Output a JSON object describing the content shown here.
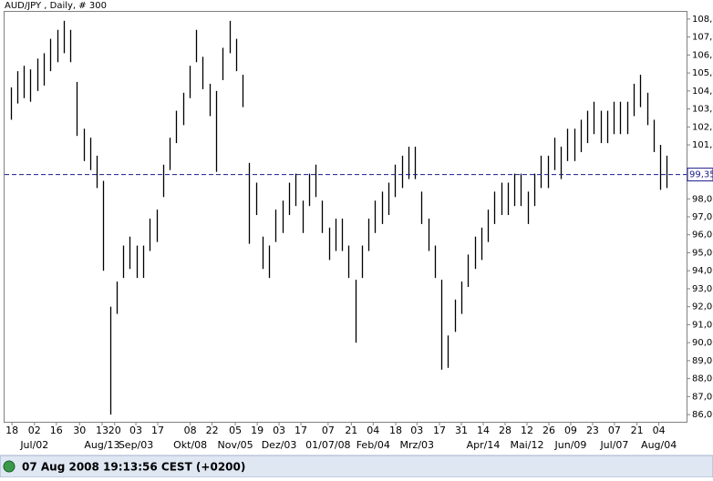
{
  "chart_data": {
    "type": "range-bar",
    "title": "AUD/JPY , Daily, # 300",
    "color": "#000000",
    "xlim": [
      0,
      100
    ],
    "high": [
      104.2,
      105.1,
      105.4,
      105.2,
      105.8,
      106.1,
      106.9,
      107.4,
      107.9,
      107.4,
      104.5,
      101.9,
      101.4,
      100.4,
      99,
      92,
      93.4,
      95.4,
      95.9,
      95.4,
      95.4,
      96.9,
      97.4,
      99.9,
      101.4,
      102.9,
      103.9,
      105.4,
      107.4,
      105.9,
      104.4,
      104,
      106.4,
      107.9,
      106.9,
      104.9,
      100,
      98.9,
      95.9,
      95.4,
      97.4,
      97.9,
      98.9,
      99.4,
      97.9,
      99.4,
      99.9,
      97.9,
      96.4,
      96.9,
      96.9,
      95.4,
      93.5,
      95.4,
      96.9,
      97.9,
      98.4,
      98.9,
      99.9,
      100.4,
      100.9,
      100.9,
      98.4,
      96.9,
      95.4,
      93.5,
      90.4,
      92.4,
      93.4,
      94.9,
      95.9,
      96.4,
      97.4,
      98.4,
      98.9,
      98.9,
      99.4,
      99.4,
      98.4,
      99.4,
      100.4,
      100.4,
      101.4,
      100.9,
      101.9,
      101.9,
      102.4,
      102.9,
      103.4,
      102.9,
      102.9,
      103.4,
      103.4,
      103.4,
      104.4,
      104.9,
      103.9,
      102.4,
      101,
      100.4
    ],
    "low": [
      102.4,
      103.3,
      103.6,
      103.4,
      104,
      104.3,
      105.1,
      105.6,
      106.1,
      105.6,
      101.5,
      100.1,
      99.6,
      98.6,
      94,
      86,
      91.6,
      93.6,
      94.1,
      93.6,
      93.6,
      95.1,
      95.6,
      98.1,
      99.6,
      101.1,
      102.1,
      103.6,
      105.6,
      104.1,
      102.6,
      99.5,
      104.6,
      106.1,
      105.1,
      103.1,
      95.5,
      97.1,
      94.1,
      93.6,
      95.6,
      96.1,
      97.1,
      97.6,
      96.1,
      97.6,
      98.1,
      96.1,
      94.6,
      95.1,
      95.1,
      93.6,
      90,
      93.6,
      95.1,
      96.1,
      96.6,
      97.1,
      98.1,
      98.6,
      99.1,
      99.1,
      96.6,
      95.1,
      93.6,
      88.5,
      88.6,
      90.6,
      91.6,
      93.1,
      94.1,
      94.6,
      95.6,
      96.6,
      97.1,
      97.1,
      97.6,
      97.6,
      96.6,
      97.6,
      98.6,
      98.6,
      99.6,
      99.1,
      100.1,
      100.1,
      100.6,
      101.1,
      101.6,
      101.1,
      101.1,
      101.6,
      101.6,
      101.6,
      102.6,
      103.1,
      102.1,
      100.6,
      98.5,
      98.6
    ],
    "ylim": [
      85.6,
      108.4
    ],
    "yticks": [
      {
        "value": 86,
        "label": "86,00"
      },
      {
        "value": 87,
        "label": "87,00"
      },
      {
        "value": 88,
        "label": "88,00"
      },
      {
        "value": 89,
        "label": "89,00"
      },
      {
        "value": 90,
        "label": "90,00"
      },
      {
        "value": 91,
        "label": "91,00"
      },
      {
        "value": 92,
        "label": "92,00"
      },
      {
        "value": 93,
        "label": "93,00"
      },
      {
        "value": 94,
        "label": "94,00"
      },
      {
        "value": 95,
        "label": "95,00"
      },
      {
        "value": 96,
        "label": "96,00"
      },
      {
        "value": 97,
        "label": "97,00"
      },
      {
        "value": 98,
        "label": "98,00"
      },
      {
        "value": 101,
        "label": "101,00"
      },
      {
        "value": 102,
        "label": "102,00"
      },
      {
        "value": 103,
        "label": "103,00"
      },
      {
        "value": 104,
        "label": "104,00"
      },
      {
        "value": 105,
        "label": "105,00"
      },
      {
        "value": 106,
        "label": "106,00"
      },
      {
        "value": 107,
        "label": "107,00"
      },
      {
        "value": 108,
        "label": "108,00"
      }
    ],
    "current": {
      "value": 99.35,
      "label": "99,35"
    },
    "xticks": [
      {
        "value": 0.7,
        "label": "18"
      },
      {
        "value": 4.1,
        "label": "02"
      },
      {
        "value": 7.4,
        "label": "16"
      },
      {
        "value": 10.9,
        "label": "30"
      },
      {
        "value": 14.3,
        "label": "13"
      },
      {
        "value": 16.2,
        "label": "20"
      },
      {
        "value": 19.4,
        "label": "03"
      },
      {
        "value": 22.7,
        "label": "17"
      },
      {
        "value": 27.6,
        "label": "08"
      },
      {
        "value": 30.9,
        "label": "22"
      },
      {
        "value": 34.4,
        "label": "05"
      },
      {
        "value": 37.7,
        "label": "19"
      },
      {
        "value": 41.0,
        "label": "03"
      },
      {
        "value": 44.3,
        "label": "17"
      },
      {
        "value": 48.4,
        "label": "07"
      },
      {
        "value": 51.9,
        "label": "21"
      },
      {
        "value": 55.2,
        "label": "04"
      },
      {
        "value": 58.6,
        "label": "18"
      },
      {
        "value": 61.8,
        "label": "03"
      },
      {
        "value": 65.2,
        "label": "17"
      },
      {
        "value": 68.5,
        "label": "31"
      },
      {
        "value": 71.8,
        "label": "14"
      },
      {
        "value": 75.1,
        "label": "28"
      },
      {
        "value": 78.4,
        "label": "12"
      },
      {
        "value": 81.7,
        "label": "26"
      },
      {
        "value": 85.0,
        "label": "09"
      },
      {
        "value": 88.3,
        "label": "23"
      },
      {
        "value": 91.6,
        "label": "07"
      },
      {
        "value": 95.0,
        "label": "21"
      },
      {
        "value": 98.3,
        "label": "04"
      }
    ],
    "month_labels": [
      {
        "value": 4.1,
        "label": "Jul/02"
      },
      {
        "value": 14.3,
        "label": "Aug/13"
      },
      {
        "value": 19.4,
        "label": "Sep/03"
      },
      {
        "value": 27.6,
        "label": "Okt/08"
      },
      {
        "value": 34.4,
        "label": "Nov/05"
      },
      {
        "value": 41.0,
        "label": "Dez/03"
      },
      {
        "value": 48.4,
        "label": "01/07/08"
      },
      {
        "value": 55.2,
        "label": "Feb/04"
      },
      {
        "value": 61.8,
        "label": "Mrz/03"
      },
      {
        "value": 71.8,
        "label": "Apr/14"
      },
      {
        "value": 78.4,
        "label": "Mai/12"
      },
      {
        "value": 85.0,
        "label": "Jun/09"
      },
      {
        "value": 91.6,
        "label": "Jul/07"
      },
      {
        "value": 98.3,
        "label": "Aug/04"
      }
    ],
    "status": "07 Aug 2008 19:13:56  CEST (+0200)"
  }
}
